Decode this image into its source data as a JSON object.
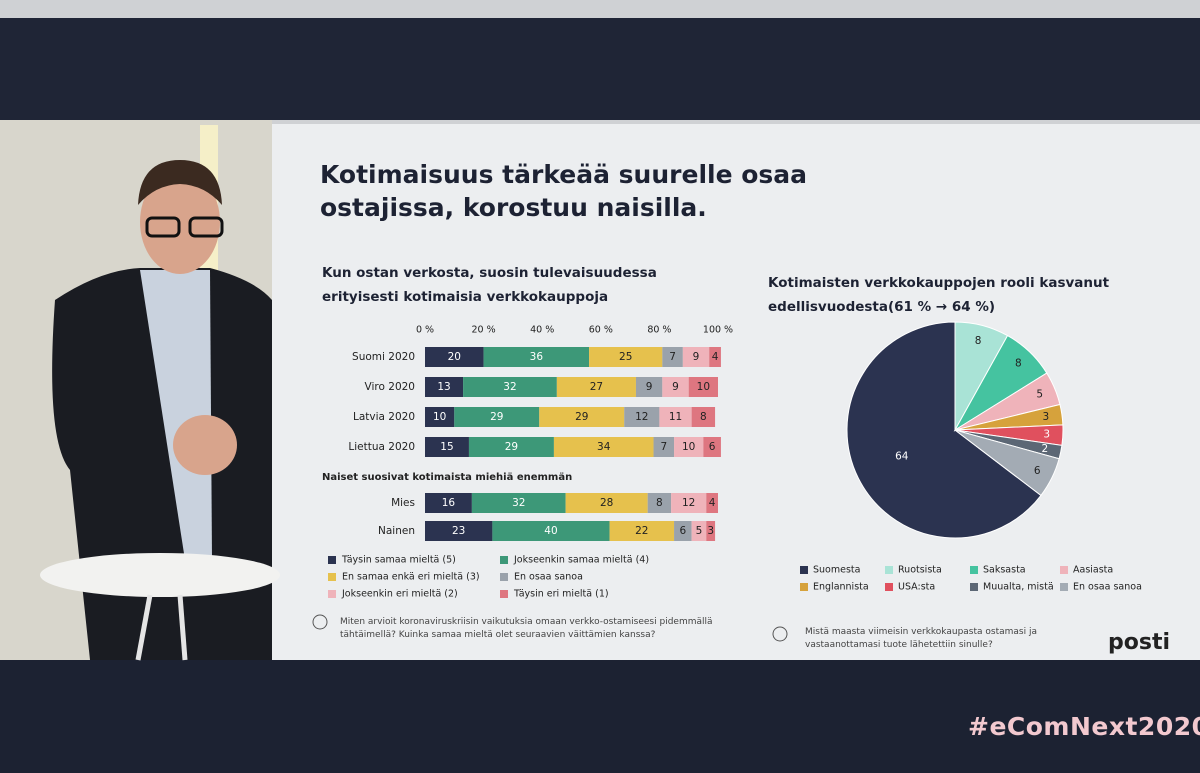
{
  "slide": {
    "title": "Kotimaisuus tärkeää suurelle osaa ostajissa, korostuu naisilla.",
    "note_left": "Miten arvioit koronaviruskriisin vaikutuksia omaan verkko-ostamiseesi pidemmällä tähtäimellä? Kuinka samaa mieltä olet seuraavien väittämien kanssa?",
    "note_right": "Mistä maasta viimeisin verkkokaupasta ostamasi ja vastaanottamasi tuote lähetettiin sinulle?",
    "logo": "posti"
  },
  "hashtag": "#eComNext2020",
  "chart_data": [
    {
      "type": "stacked-bar-horizontal",
      "title": "Kun ostan verkosta, suosin tulevaisuudessa erityisesti kotimaisia verkkokauppoja",
      "annotation": "Naiset suosivat kotimaista miehiä enemmän",
      "categories": [
        "Suomi 2020",
        "Viro 2020",
        "Latvia 2020",
        "Liettua 2020",
        "Mies",
        "Nainen"
      ],
      "xlim": [
        0,
        100
      ],
      "xticks": [
        {
          "value": 0,
          "label": "0 %"
        },
        {
          "value": 20,
          "label": "20 %"
        },
        {
          "value": 40,
          "label": "40 %"
        },
        {
          "value": 60,
          "label": "60 %"
        },
        {
          "value": 80,
          "label": "80 %"
        },
        {
          "value": 100,
          "label": "100 %"
        }
      ],
      "series": [
        {
          "name": "Täysin samaa mieltä (5)",
          "color": "#2b3350",
          "values": [
            20,
            13,
            10,
            15,
            16,
            23
          ]
        },
        {
          "name": "Jokseenkin samaa mieltä (4)",
          "color": "#3d9878",
          "values": [
            36,
            32,
            29,
            29,
            32,
            40
          ]
        },
        {
          "name": "En samaa enkä eri mieltä (3)",
          "color": "#e6c14d",
          "values": [
            25,
            27,
            29,
            34,
            28,
            22
          ]
        },
        {
          "name": "En osaa sanoa",
          "color": "#9aa2ab",
          "values": [
            7,
            9,
            12,
            7,
            8,
            6
          ]
        },
        {
          "name": "Jokseenkin eri mieltä (2)",
          "color": "#efb3ba",
          "values": [
            9,
            9,
            11,
            10,
            12,
            5
          ]
        },
        {
          "name": "Täysin eri mieltä (1)",
          "color": "#de7680",
          "values": [
            4,
            10,
            8,
            6,
            4,
            3
          ]
        }
      ]
    },
    {
      "type": "pie",
      "title": "Kotimaisten verkkokauppojen rooli kasvanut edellisvuodesta(61 % → 64 %)",
      "categories": [
        "Suomesta",
        "Ruotsista",
        "Saksasta",
        "Aasiasta",
        "Englannista",
        "USA:sta",
        "Muualta, mistä",
        "En osaa sanoa"
      ],
      "values": [
        64,
        8,
        8,
        5,
        3,
        3,
        2,
        6
      ],
      "colors": [
        "#2b3350",
        "#a9e3d6",
        "#45c3a0",
        "#efb3ba",
        "#d6a23c",
        "#e0505e",
        "#5c6775",
        "#a3abb4"
      ]
    }
  ]
}
